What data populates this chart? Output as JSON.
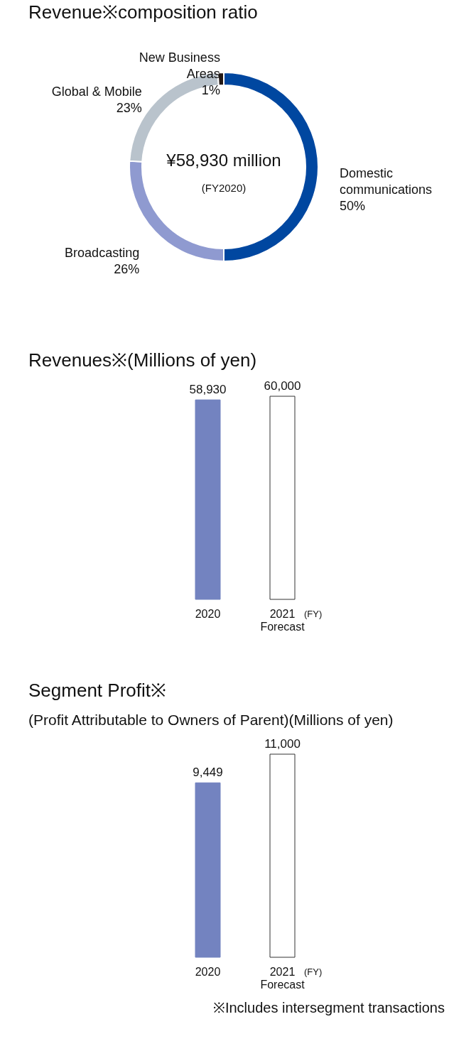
{
  "chart_data": [
    {
      "type": "donut",
      "title": "Revenue※composition ratio",
      "categories": [
        "Domestic\ncommunications",
        "Broadcasting",
        "Global & Mobile",
        "New Business\nAreas"
      ],
      "values": [
        50,
        26,
        23,
        1
      ],
      "value_labels": [
        "50%",
        "26%",
        "23%",
        "1%"
      ],
      "colors": [
        "#0047a0",
        "#8f9ad0",
        "#b9c3cc",
        "#231815"
      ],
      "annotations": [
        "¥58,930 million",
        "(FY2020)"
      ]
    },
    {
      "type": "bar",
      "title": "Revenues※(Millions of yen)",
      "categories": [
        "2020",
        "2021\nForecast"
      ],
      "values": [
        58930,
        60000
      ],
      "colors": [
        "#7383c0",
        "#ffffff"
      ],
      "value_labels": [
        "58,930",
        "60,000"
      ],
      "annotations": [
        "(FY)"
      ]
    },
    {
      "type": "bar",
      "title": "Segment Profit※",
      "subtitle": "(Profit Attributable to Owners of Parent)(Millions of yen)",
      "categories": [
        "2020",
        "2021\nForecast"
      ],
      "values": [
        9449,
        11000
      ],
      "colors": [
        "#7383c0",
        "#ffffff"
      ],
      "value_labels": [
        "9,449",
        "11,000"
      ],
      "annotations": [
        "(FY)",
        "※Includes intersegment transactions"
      ]
    }
  ]
}
